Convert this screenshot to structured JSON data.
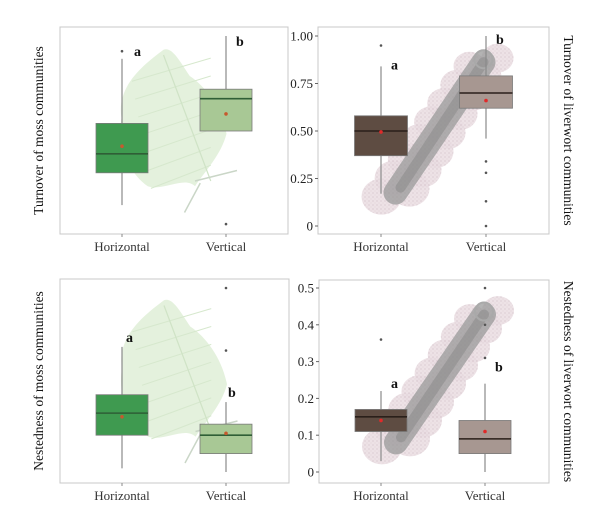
{
  "colors": {
    "moss_horizontal": "#3f9a50",
    "moss_vertical": "#a8c895",
    "moss_median": "#2f5e36",
    "liverwort_horizontal": "#5e4c42",
    "liverwort_vertical": "#a79791",
    "liverwort_median": "#2a1f1a",
    "moss_mean": "#c65a2e",
    "liverwort_mean": "#e02a2a",
    "whisker": "#8a8a8a",
    "outlier": "#555555",
    "frame": "#c8c8c8"
  },
  "chart_data": [
    {
      "type": "box",
      "panel": "top-left",
      "title": "",
      "ylabel": "Turnover of moss communities",
      "ylabel_side": "left",
      "xlabel": "",
      "categories": [
        "Horizontal",
        "Vertical"
      ],
      "ylim": [
        0,
        1.0
      ],
      "yticks_shown": false,
      "group": "moss",
      "boxes": [
        {
          "category": "Horizontal",
          "whisker_low": 0.11,
          "q1": 0.28,
          "median": 0.38,
          "q3": 0.54,
          "whisker_high": 0.88,
          "mean": 0.42,
          "outliers": [
            0.92
          ],
          "letter": "a"
        },
        {
          "category": "Vertical",
          "whisker_low": 0.5,
          "q1": 0.5,
          "median": 0.67,
          "q3": 0.72,
          "whisker_high": 1.0,
          "mean": 0.59,
          "outliers": [
            0.01
          ],
          "letter": "b"
        }
      ]
    },
    {
      "type": "box",
      "panel": "top-right",
      "title": "",
      "ylabel": "Turnover of liverwort communities",
      "ylabel_side": "right",
      "xlabel": "",
      "categories": [
        "Horizontal",
        "Vertical"
      ],
      "ylim": [
        0,
        1.0
      ],
      "yticks": [
        0,
        0.25,
        0.5,
        0.75,
        1.0
      ],
      "ytick_labels": [
        "0",
        "0.25",
        "0.50",
        "0.75",
        "1.00"
      ],
      "yticks_shown": true,
      "group": "liverwort",
      "boxes": [
        {
          "category": "Horizontal",
          "whisker_low": 0.17,
          "q1": 0.37,
          "median": 0.5,
          "q3": 0.58,
          "whisker_high": 0.84,
          "mean": 0.495,
          "outliers": [
            0.95
          ],
          "letter": "a"
        },
        {
          "category": "Vertical",
          "whisker_low": 0.46,
          "q1": 0.62,
          "median": 0.7,
          "q3": 0.79,
          "whisker_high": 1.0,
          "mean": 0.66,
          "outliers": [
            0.34,
            0.28,
            0.13,
            0.0
          ],
          "letter": "b"
        }
      ]
    },
    {
      "type": "box",
      "panel": "bottom-left",
      "title": "",
      "ylabel": "Nestedness of moss communities",
      "ylabel_side": "left",
      "xlabel": "",
      "categories": [
        "Horizontal",
        "Vertical"
      ],
      "ylim": [
        0,
        0.5
      ],
      "yticks_shown": false,
      "group": "moss",
      "boxes": [
        {
          "category": "Horizontal",
          "whisker_low": 0.01,
          "q1": 0.1,
          "median": 0.16,
          "q3": 0.21,
          "whisker_high": 0.34,
          "mean": 0.15,
          "outliers": [],
          "letter": "a"
        },
        {
          "category": "Vertical",
          "whisker_low": 0.0,
          "q1": 0.05,
          "median": 0.1,
          "q3": 0.13,
          "whisker_high": 0.19,
          "mean": 0.105,
          "outliers": [
            0.5,
            0.33
          ],
          "letter": "b"
        }
      ]
    },
    {
      "type": "box",
      "panel": "bottom-right",
      "title": "",
      "ylabel": "Nestedness of liverwort communities",
      "ylabel_side": "right",
      "xlabel": "",
      "categories": [
        "Horizontal",
        "Vertical"
      ],
      "ylim": [
        0,
        0.5
      ],
      "yticks": [
        0,
        0.1,
        0.2,
        0.3,
        0.4,
        0.5
      ],
      "ytick_labels": [
        "0",
        "0.1",
        "0.2",
        "0.3",
        "0.4",
        "0.5"
      ],
      "yticks_shown": true,
      "group": "liverwort",
      "boxes": [
        {
          "category": "Horizontal",
          "whisker_low": 0.03,
          "q1": 0.11,
          "median": 0.15,
          "q3": 0.17,
          "whisker_high": 0.22,
          "mean": 0.14,
          "outliers": [
            0.36
          ],
          "letter": "a"
        },
        {
          "category": "Vertical",
          "whisker_low": 0.0,
          "q1": 0.05,
          "median": 0.09,
          "q3": 0.14,
          "whisker_high": 0.24,
          "mean": 0.11,
          "outliers": [
            0.5,
            0.4,
            0.31
          ],
          "letter": "b"
        }
      ]
    }
  ]
}
